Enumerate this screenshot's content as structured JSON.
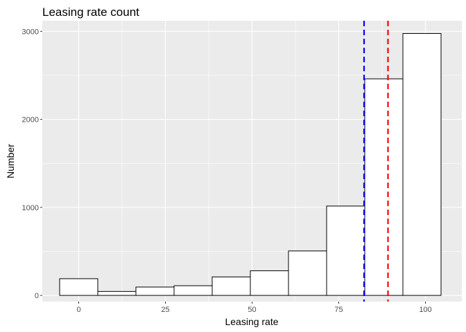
{
  "chart_data": {
    "type": "bar",
    "title": "Leasing rate count",
    "xlabel": "Leasing rate",
    "ylabel": "Number",
    "xlim": [
      -10.5,
      110.5
    ],
    "ylim": [
      -70,
      3120
    ],
    "x_ticks": [
      0,
      25,
      50,
      75,
      100
    ],
    "y_ticks": [
      0,
      1000,
      2000,
      3000
    ],
    "bins": [
      {
        "x0": -5.5,
        "x1": 5.5,
        "count": 190
      },
      {
        "x0": 5.5,
        "x1": 16.5,
        "count": 45
      },
      {
        "x0": 16.5,
        "x1": 27.5,
        "count": 95
      },
      {
        "x0": 27.5,
        "x1": 38.5,
        "count": 110
      },
      {
        "x0": 38.5,
        "x1": 49.5,
        "count": 210
      },
      {
        "x0": 49.5,
        "x1": 60.5,
        "count": 280
      },
      {
        "x0": 60.5,
        "x1": 71.5,
        "count": 505
      },
      {
        "x0": 71.5,
        "x1": 82.5,
        "count": 1015
      },
      {
        "x0": 82.5,
        "x1": 93.5,
        "count": 2460
      },
      {
        "x0": 93.5,
        "x1": 104.5,
        "count": 2975
      }
    ],
    "reference_lines": [
      {
        "x": 82.3,
        "color": "#0000ff",
        "style": "dashed"
      },
      {
        "x": 89.2,
        "color": "#ff0000",
        "style": "dashed"
      }
    ],
    "panel_background": "#ebebeb",
    "grid": true,
    "bar_fill": "#ffffff",
    "bar_stroke": "#000000"
  }
}
